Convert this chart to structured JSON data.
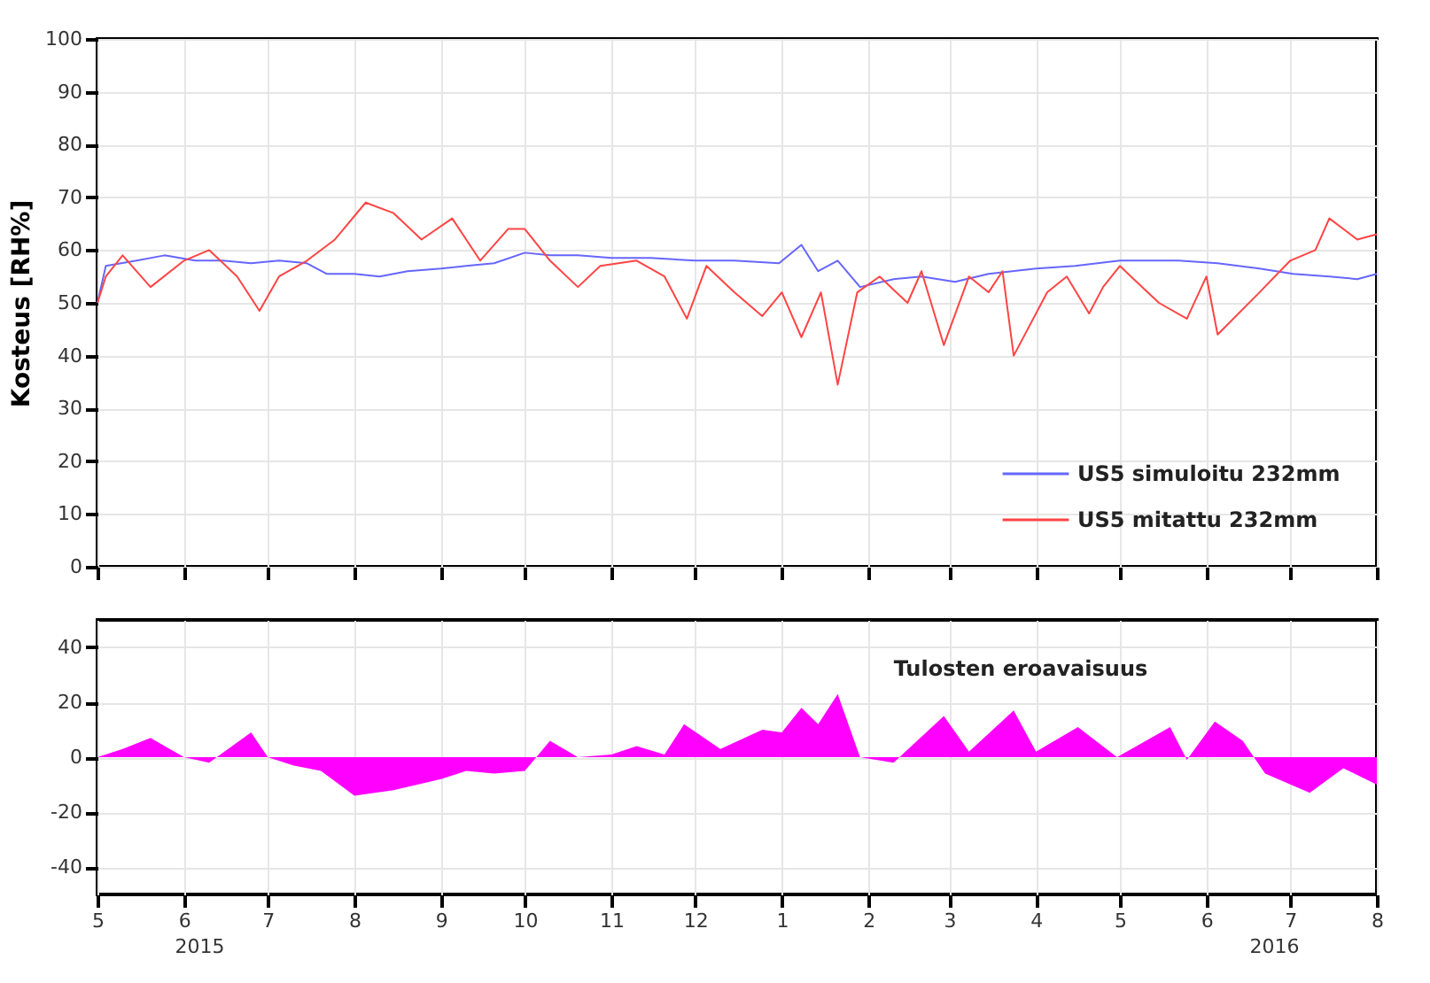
{
  "chart_data": [
    {
      "type": "line",
      "ylabel": "Kosteus [RH%]",
      "ylim": [
        0,
        100
      ],
      "yticks": [
        0,
        10,
        20,
        30,
        40,
        50,
        60,
        70,
        80,
        90,
        100
      ],
      "xlim": [
        "2015-05-01",
        "2016-08-01"
      ],
      "xticks": [
        {
          "value": "2015-05-01",
          "label": null
        },
        {
          "value": "2015-06-01",
          "label": null
        },
        {
          "value": "2015-07-01",
          "label": null
        },
        {
          "value": "2015-08-01",
          "label": null
        },
        {
          "value": "2015-09-01",
          "label": null
        },
        {
          "value": "2015-10-01",
          "label": null
        },
        {
          "value": "2015-11-01",
          "label": null
        },
        {
          "value": "2015-12-01",
          "label": null
        },
        {
          "value": "2016-01-01",
          "label": null
        },
        {
          "value": "2016-02-01",
          "label": null
        },
        {
          "value": "2016-03-01",
          "label": null
        },
        {
          "value": "2016-04-01",
          "label": null
        },
        {
          "value": "2016-05-01",
          "label": null
        },
        {
          "value": "2016-06-01",
          "label": null
        },
        {
          "value": "2016-07-01",
          "label": null
        },
        {
          "value": "2016-08-01",
          "label": null
        }
      ],
      "tick_labels": "y",
      "grid": true,
      "legend": "bottom right",
      "series": [
        {
          "name": "US5 simuloitu 232mm",
          "color": "#6666ff",
          "x": [
            "2015-05-01",
            "2015-05-04",
            "2015-05-15",
            "2015-05-25",
            "2015-06-05",
            "2015-06-15",
            "2015-06-25",
            "2015-07-05",
            "2015-07-15",
            "2015-07-22",
            "2015-08-01",
            "2015-08-10",
            "2015-08-20",
            "2015-09-01",
            "2015-09-10",
            "2015-09-20",
            "2015-10-01",
            "2015-10-10",
            "2015-10-20",
            "2015-11-01",
            "2015-11-15",
            "2015-12-01",
            "2015-12-15",
            "2015-12-31",
            "2016-01-08",
            "2016-01-14",
            "2016-01-21",
            "2016-01-29",
            "2016-02-10",
            "2016-02-20",
            "2016-03-03",
            "2016-03-15",
            "2016-04-01",
            "2016-04-15",
            "2016-05-01",
            "2016-05-22",
            "2016-06-05",
            "2016-06-20",
            "2016-07-02",
            "2016-07-15",
            "2016-07-25",
            "2016-08-01"
          ],
          "values": [
            50,
            57,
            58,
            59,
            58,
            58,
            57.5,
            58,
            57.5,
            55.5,
            55.5,
            55,
            56,
            56.5,
            57,
            57.5,
            59.5,
            59,
            59,
            58.5,
            58.5,
            58,
            58,
            57.5,
            61,
            56,
            58,
            53,
            54.5,
            55,
            54,
            55.5,
            56.5,
            57,
            58,
            58,
            57.5,
            56.5,
            55.5,
            55,
            54.5,
            55.5
          ]
        },
        {
          "name": "US5 mitattu 232mm",
          "color": "#ff4444",
          "x": [
            "2015-05-01",
            "2015-05-04",
            "2015-05-10",
            "2015-05-20",
            "2015-06-01",
            "2015-06-10",
            "2015-06-20",
            "2015-06-28",
            "2015-07-05",
            "2015-07-15",
            "2015-07-25",
            "2015-08-05",
            "2015-08-15",
            "2015-08-25",
            "2015-09-05",
            "2015-09-15",
            "2015-09-25",
            "2015-10-01",
            "2015-10-10",
            "2015-10-20",
            "2015-10-28",
            "2015-11-10",
            "2015-11-20",
            "2015-11-28",
            "2015-12-05",
            "2015-12-15",
            "2015-12-25",
            "2016-01-01",
            "2016-01-08",
            "2016-01-15",
            "2016-01-21",
            "2016-01-28",
            "2016-02-05",
            "2016-02-15",
            "2016-02-20",
            "2016-02-28",
            "2016-03-08",
            "2016-03-15",
            "2016-03-20",
            "2016-03-24",
            "2016-04-05",
            "2016-04-12",
            "2016-04-20",
            "2016-04-25",
            "2016-05-01",
            "2016-05-15",
            "2016-05-25",
            "2016-06-01",
            "2016-06-05",
            "2016-06-20",
            "2016-07-01",
            "2016-07-10",
            "2016-07-15",
            "2016-07-25",
            "2016-08-01"
          ],
          "values": [
            50,
            55,
            59,
            53,
            58,
            60,
            55,
            48.5,
            55,
            58,
            62,
            69,
            67,
            62,
            66,
            58,
            64,
            64,
            58,
            53,
            57,
            58,
            55,
            47,
            57,
            52,
            47.5,
            52,
            43.5,
            52,
            34.5,
            52,
            55,
            50,
            56,
            42,
            55,
            52,
            56,
            40,
            52,
            55,
            48,
            53,
            57,
            50,
            47,
            55,
            44,
            52,
            58,
            60,
            66,
            62,
            63
          ]
        }
      ]
    },
    {
      "type": "area",
      "ylim": [
        -50,
        50
      ],
      "yticks": [
        -40,
        -20,
        0,
        20,
        40
      ],
      "xlim": [
        "2015-05-01",
        "2016-08-01"
      ],
      "xticks": [
        {
          "value": "2015-05-01",
          "label": "5"
        },
        {
          "value": "2015-06-01",
          "label": "6"
        },
        {
          "value": "2015-07-01",
          "label": "7"
        },
        {
          "value": "2015-08-01",
          "label": "8"
        },
        {
          "value": "2015-09-01",
          "label": "9"
        },
        {
          "value": "2015-10-01",
          "label": "10"
        },
        {
          "value": "2015-11-01",
          "label": "11"
        },
        {
          "value": "2015-12-01",
          "label": "12"
        },
        {
          "value": "2016-01-01",
          "label": "1"
        },
        {
          "value": "2016-02-01",
          "label": "2"
        },
        {
          "value": "2016-03-01",
          "label": "3"
        },
        {
          "value": "2016-04-01",
          "label": "4"
        },
        {
          "value": "2016-05-01",
          "label": "5"
        },
        {
          "value": "2016-06-01",
          "label": "6"
        },
        {
          "value": "2016-07-01",
          "label": "7"
        },
        {
          "value": "2016-08-01",
          "label": "8"
        }
      ],
      "grid": true,
      "legend": "top",
      "annotations": [
        "2015",
        "2016"
      ],
      "series": [
        {
          "name": "Tulosten eroavaisuus",
          "color": "#ff00ff",
          "x": [
            "2015-05-01",
            "2015-05-10",
            "2015-05-20",
            "2015-06-01",
            "2015-06-10",
            "2015-06-25",
            "2015-07-01",
            "2015-07-10",
            "2015-07-20",
            "2015-08-01",
            "2015-08-15",
            "2015-09-01",
            "2015-09-10",
            "2015-09-20",
            "2015-10-01",
            "2015-10-10",
            "2015-10-20",
            "2015-11-01",
            "2015-11-10",
            "2015-11-20",
            "2015-11-27",
            "2015-12-10",
            "2015-12-25",
            "2016-01-01",
            "2016-01-08",
            "2016-01-14",
            "2016-01-21",
            "2016-01-29",
            "2016-02-10",
            "2016-02-28",
            "2016-03-08",
            "2016-03-24",
            "2016-04-01",
            "2016-04-16",
            "2016-04-30",
            "2016-05-19",
            "2016-05-25",
            "2016-06-04",
            "2016-06-14",
            "2016-06-22",
            "2016-07-08",
            "2016-07-20",
            "2016-08-01"
          ],
          "values": [
            0,
            3,
            7,
            0,
            -2,
            9,
            0,
            -3,
            -5,
            -14,
            -12,
            -8,
            -5,
            -6,
            -5,
            6,
            0,
            1,
            4,
            1,
            12,
            3,
            10,
            9,
            18,
            12,
            23,
            0,
            -2,
            15,
            2,
            17,
            2,
            11,
            0,
            11,
            -1,
            13,
            6,
            -6,
            -13,
            -4,
            -10
          ]
        }
      ]
    }
  ]
}
